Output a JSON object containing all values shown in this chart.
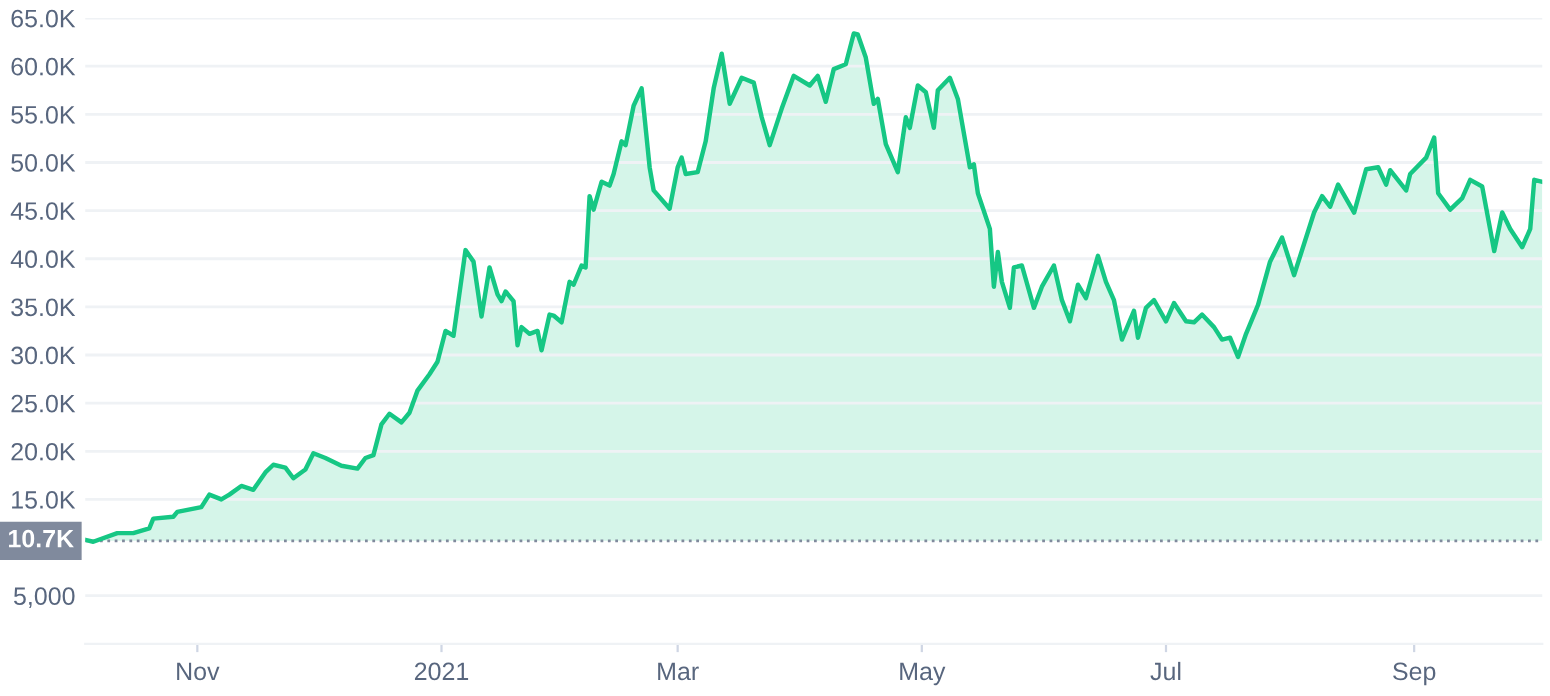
{
  "chart_data": {
    "type": "area",
    "x": [
      "2020-10-04",
      "2020-10-06",
      "2020-10-12",
      "2020-10-16",
      "2020-10-20",
      "2020-10-21",
      "2020-10-26",
      "2020-10-27",
      "2020-11-02",
      "2020-11-04",
      "2020-11-07",
      "2020-11-09",
      "2020-11-12",
      "2020-11-15",
      "2020-11-18",
      "2020-11-20",
      "2020-11-23",
      "2020-11-25",
      "2020-11-28",
      "2020-11-30",
      "2020-12-03",
      "2020-12-07",
      "2020-12-11",
      "2020-12-13",
      "2020-12-15",
      "2020-12-17",
      "2020-12-19",
      "2020-12-22",
      "2020-12-24",
      "2020-12-26",
      "2020-12-29",
      "2020-12-31",
      "2021-01-02",
      "2021-01-04",
      "2021-01-07",
      "2021-01-09",
      "2021-01-11",
      "2021-01-13",
      "2021-01-15",
      "2021-01-16",
      "2021-01-17",
      "2021-01-19",
      "2021-01-20",
      "2021-01-21",
      "2021-01-23",
      "2021-01-25",
      "2021-01-26",
      "2021-01-28",
      "2021-01-29",
      "2021-01-31",
      "2021-02-02",
      "2021-02-03",
      "2021-02-05",
      "2021-02-06",
      "2021-02-07",
      "2021-02-08",
      "2021-02-10",
      "2021-02-12",
      "2021-02-13",
      "2021-02-15",
      "2021-02-16",
      "2021-02-18",
      "2021-02-20",
      "2021-02-22",
      "2021-02-23",
      "2021-02-27",
      "2021-03-01",
      "2021-03-02",
      "2021-03-03",
      "2021-03-06",
      "2021-03-08",
      "2021-03-10",
      "2021-03-12",
      "2021-03-14",
      "2021-03-17",
      "2021-03-20",
      "2021-03-22",
      "2021-03-24",
      "2021-03-27",
      "2021-03-30",
      "2021-04-03",
      "2021-04-05",
      "2021-04-07",
      "2021-04-09",
      "2021-04-12",
      "2021-04-14",
      "2021-04-15",
      "2021-04-17",
      "2021-04-19",
      "2021-04-20",
      "2021-04-22",
      "2021-04-25",
      "2021-04-27",
      "2021-04-28",
      "2021-04-30",
      "2021-05-02",
      "2021-05-04",
      "2021-05-05",
      "2021-05-08",
      "2021-05-10",
      "2021-05-13",
      "2021-05-14",
      "2021-05-15",
      "2021-05-18",
      "2021-05-19",
      "2021-05-20",
      "2021-05-21",
      "2021-05-23",
      "2021-05-24",
      "2021-05-26",
      "2021-05-29",
      "2021-05-31",
      "2021-06-03",
      "2021-06-05",
      "2021-06-07",
      "2021-06-09",
      "2021-06-11",
      "2021-06-14",
      "2021-06-16",
      "2021-06-18",
      "2021-06-20",
      "2021-06-23",
      "2021-06-24",
      "2021-06-26",
      "2021-06-28",
      "2021-07-01",
      "2021-07-03",
      "2021-07-06",
      "2021-07-08",
      "2021-07-10",
      "2021-07-13",
      "2021-07-15",
      "2021-07-17",
      "2021-07-19",
      "2021-07-21",
      "2021-07-24",
      "2021-07-27",
      "2021-07-30",
      "2021-08-02",
      "2021-08-07",
      "2021-08-09",
      "2021-08-11",
      "2021-08-13",
      "2021-08-17",
      "2021-08-20",
      "2021-08-23",
      "2021-08-25",
      "2021-08-26",
      "2021-08-30",
      "2021-08-31",
      "2021-09-04",
      "2021-09-06",
      "2021-09-07",
      "2021-09-10",
      "2021-09-13",
      "2021-09-15",
      "2021-09-18",
      "2021-09-21",
      "2021-09-23",
      "2021-09-25",
      "2021-09-28",
      "2021-09-30",
      "2021-10-01",
      "2021-10-03"
    ],
    "series": [
      {
        "color": "#16c784",
        "values": [
          10800,
          10600,
          11500,
          11500,
          12000,
          13000,
          13200,
          13700,
          14200,
          15500,
          15000,
          15500,
          16400,
          16000,
          17800,
          18600,
          18300,
          17200,
          18100,
          19800,
          19300,
          18500,
          18200,
          19300,
          19600,
          22800,
          23900,
          23000,
          24000,
          26300,
          28000,
          29300,
          32500,
          32000,
          40900,
          39700,
          34000,
          39100,
          36300,
          35600,
          36600,
          35600,
          31000,
          32900,
          32200,
          32500,
          30500,
          34200,
          34100,
          33400,
          37600,
          37300,
          39300,
          39100,
          46500,
          45100,
          48000,
          47600,
          48800,
          52200,
          51800,
          55900,
          57700,
          49500,
          47100,
          45200,
          49500,
          50500,
          48800,
          49000,
          52200,
          57700,
          61300,
          56100,
          58800,
          58300,
          54700,
          51800,
          55600,
          59000,
          58000,
          59000,
          56300,
          59700,
          60200,
          63400,
          63300,
          60900,
          56100,
          56600,
          51900,
          49000,
          54700,
          53600,
          58000,
          57300,
          53600,
          57500,
          58800,
          56600,
          49500,
          49800,
          46800,
          43100,
          37100,
          40700,
          37600,
          34900,
          39100,
          39300,
          34900,
          37100,
          39300,
          35700,
          33500,
          37300,
          35900,
          40300,
          37600,
          35700,
          31600,
          34600,
          31800,
          34900,
          35700,
          33500,
          35400,
          33500,
          33400,
          34200,
          32900,
          31600,
          31800,
          29800,
          32200,
          35200,
          39700,
          42200,
          38300,
          44800,
          46500,
          45400,
          47700,
          44800,
          49300,
          49500,
          47700,
          49200,
          47100,
          48800,
          50500,
          52600,
          46800,
          45100,
          46300,
          48200,
          47500,
          40800,
          44800,
          43100,
          41200,
          43100,
          48200,
          48000
        ]
      }
    ],
    "xlim": [
      "2020-10-04",
      "2021-10-03"
    ],
    "xticks": [
      {
        "value": "2020-11-01",
        "label": "Nov"
      },
      {
        "value": "2021-01-01",
        "label": "2021"
      },
      {
        "value": "2021-03-01",
        "label": "Mar"
      },
      {
        "value": "2021-05-01",
        "label": "May"
      },
      {
        "value": "2021-07-01",
        "label": "Jul"
      },
      {
        "value": "2021-09-01",
        "label": "Sep"
      }
    ],
    "ylim": [
      0,
      65000
    ],
    "yticks": [
      {
        "value": 5000,
        "label": "5,000"
      },
      {
        "value": 15000,
        "label": "15.0K"
      },
      {
        "value": 20000,
        "label": "20.0K"
      },
      {
        "value": 25000,
        "label": "25.0K"
      },
      {
        "value": 30000,
        "label": "30.0K"
      },
      {
        "value": 35000,
        "label": "35.0K"
      },
      {
        "value": 40000,
        "label": "40.0K"
      },
      {
        "value": 45000,
        "label": "45.0K"
      },
      {
        "value": 50000,
        "label": "50.0K"
      },
      {
        "value": 55000,
        "label": "55.0K"
      },
      {
        "value": 60000,
        "label": "60.0K"
      },
      {
        "value": 65000,
        "label": "65.0K"
      }
    ],
    "ref_lines": [
      {
        "axis": "y",
        "value": 10700,
        "label": "10.7K",
        "color": "#808a9d",
        "line_style": "dotted"
      }
    ],
    "grid": "y",
    "legend": false,
    "marker": "none",
    "line_style": "solid"
  }
}
